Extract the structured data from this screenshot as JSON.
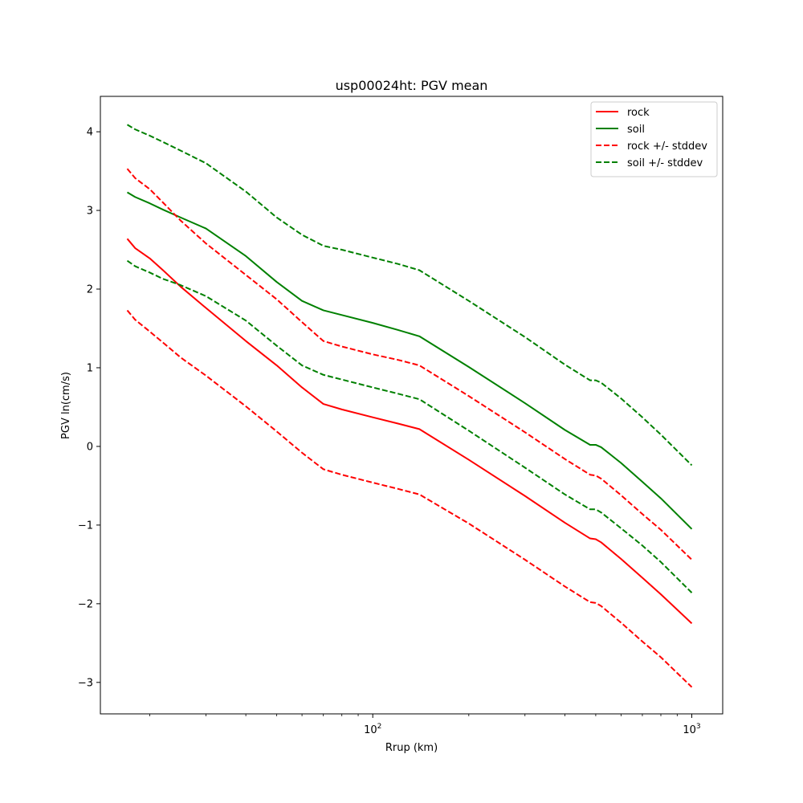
{
  "chart_data": {
    "type": "line",
    "title": "usp00024ht: PGV mean",
    "xlabel": "Rrup (km)",
    "ylabel": "PGV ln(cm/s)",
    "xscale": "log",
    "xlim": [
      14,
      1250
    ],
    "ylim": [
      -3.4,
      4.45
    ],
    "x_ticks": [
      {
        "value": 100,
        "base": "10",
        "exp": "2"
      },
      {
        "value": 1000,
        "base": "10",
        "exp": "3"
      }
    ],
    "y_ticks": [
      {
        "value": 4,
        "label": "4"
      },
      {
        "value": 3,
        "label": "3"
      },
      {
        "value": 2,
        "label": "2"
      },
      {
        "value": 1,
        "label": "1"
      },
      {
        "value": 0,
        "label": "0"
      },
      {
        "value": -1,
        "label": "−1"
      },
      {
        "value": -2,
        "label": "−2"
      },
      {
        "value": -3,
        "label": "−3"
      }
    ],
    "grid": false,
    "legend": "upper-right",
    "series": [
      {
        "name": "rock",
        "color": "#ff0000",
        "dash": "solid",
        "x": [
          17,
          18,
          20,
          22,
          25,
          30,
          40,
          50,
          60,
          70,
          80,
          100,
          120,
          140,
          200,
          300,
          400,
          480,
          500,
          520,
          600,
          700,
          800,
          1000
        ],
        "y": [
          2.64,
          2.52,
          2.39,
          2.24,
          2.03,
          1.76,
          1.34,
          1.03,
          0.75,
          0.54,
          0.47,
          0.37,
          0.29,
          0.22,
          -0.17,
          -0.63,
          -0.97,
          -1.17,
          -1.18,
          -1.22,
          -1.43,
          -1.67,
          -1.88,
          -2.25
        ]
      },
      {
        "name": "soil",
        "color": "#008000",
        "dash": "solid",
        "x": [
          17,
          18,
          20,
          22,
          25,
          30,
          40,
          50,
          60,
          70,
          80,
          100,
          120,
          140,
          200,
          300,
          400,
          480,
          500,
          520,
          600,
          700,
          800,
          1000
        ],
        "y": [
          3.23,
          3.17,
          3.09,
          3.01,
          2.91,
          2.77,
          2.42,
          2.09,
          1.85,
          1.73,
          1.67,
          1.57,
          1.48,
          1.4,
          1.01,
          0.55,
          0.21,
          0.02,
          0.02,
          -0.01,
          -0.21,
          -0.45,
          -0.66,
          -1.05
        ]
      },
      {
        "name": "rock +/- stddev",
        "color": "#ff0000",
        "dash": "dashed",
        "x": [
          17,
          18,
          20,
          22,
          25,
          30,
          40,
          50,
          60,
          70,
          80,
          100,
          120,
          140,
          200,
          300,
          400,
          480,
          500,
          520,
          600,
          700,
          800,
          1000
        ],
        "y": [
          3.53,
          3.41,
          3.27,
          3.1,
          2.87,
          2.58,
          2.18,
          1.87,
          1.58,
          1.34,
          1.27,
          1.17,
          1.1,
          1.03,
          0.64,
          0.18,
          -0.16,
          -0.36,
          -0.37,
          -0.41,
          -0.62,
          -0.86,
          -1.06,
          -1.44
        ]
      },
      {
        "name": "",
        "color": "#ff0000",
        "dash": "dashed",
        "x": [
          17,
          18,
          20,
          22,
          25,
          30,
          40,
          50,
          60,
          70,
          80,
          100,
          120,
          140,
          200,
          300,
          400,
          480,
          500,
          520,
          600,
          700,
          800,
          1000
        ],
        "y": [
          1.73,
          1.61,
          1.46,
          1.32,
          1.13,
          0.9,
          0.51,
          0.19,
          -0.08,
          -0.29,
          -0.36,
          -0.46,
          -0.54,
          -0.61,
          -0.98,
          -1.44,
          -1.78,
          -1.98,
          -1.99,
          -2.03,
          -2.24,
          -2.48,
          -2.68,
          -3.06
        ]
      },
      {
        "name": "soil +/- stddev",
        "color": "#008000",
        "dash": "dashed",
        "x": [
          17,
          18,
          20,
          22,
          25,
          30,
          40,
          50,
          60,
          70,
          80,
          100,
          120,
          140,
          200,
          300,
          400,
          480,
          500,
          520,
          600,
          700,
          800,
          1000
        ],
        "y": [
          4.09,
          4.03,
          3.95,
          3.87,
          3.76,
          3.6,
          3.24,
          2.91,
          2.69,
          2.55,
          2.5,
          2.4,
          2.32,
          2.24,
          1.85,
          1.39,
          1.04,
          0.84,
          0.84,
          0.81,
          0.61,
          0.37,
          0.15,
          -0.24
        ]
      },
      {
        "name": "",
        "color": "#008000",
        "dash": "dashed",
        "x": [
          17,
          18,
          20,
          22,
          25,
          30,
          40,
          50,
          60,
          70,
          80,
          100,
          120,
          140,
          200,
          300,
          400,
          480,
          500,
          520,
          600,
          700,
          800,
          1000
        ],
        "y": [
          2.36,
          2.29,
          2.21,
          2.13,
          2.05,
          1.91,
          1.6,
          1.28,
          1.03,
          0.91,
          0.85,
          0.75,
          0.67,
          0.6,
          0.2,
          -0.27,
          -0.61,
          -0.8,
          -0.8,
          -0.84,
          -1.04,
          -1.26,
          -1.47,
          -1.86
        ]
      }
    ]
  }
}
